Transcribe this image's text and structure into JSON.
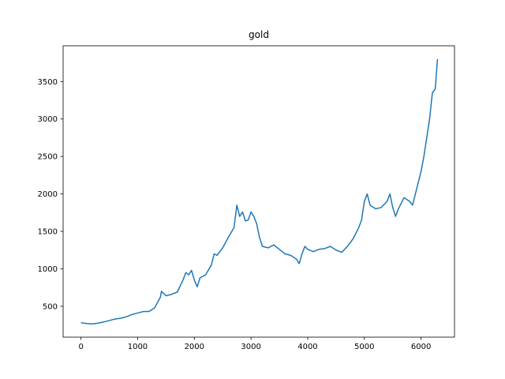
{
  "chart_data": {
    "type": "line",
    "title": "gold",
    "x": [
      0,
      100,
      200,
      300,
      400,
      500,
      600,
      700,
      800,
      900,
      1000,
      1100,
      1200,
      1300,
      1400,
      1420,
      1500,
      1600,
      1700,
      1800,
      1850,
      1900,
      1950,
      2000,
      2050,
      2100,
      2200,
      2300,
      2350,
      2400,
      2500,
      2600,
      2700,
      2750,
      2800,
      2850,
      2900,
      2950,
      3000,
      3050,
      3100,
      3150,
      3200,
      3300,
      3400,
      3500,
      3600,
      3700,
      3800,
      3850,
      3900,
      3950,
      4000,
      4100,
      4200,
      4300,
      4400,
      4500,
      4600,
      4700,
      4800,
      4900,
      4950,
      5000,
      5050,
      5100,
      5200,
      5300,
      5400,
      5450,
      5500,
      5550,
      5600,
      5700,
      5800,
      5850,
      5900,
      5950,
      6000,
      6050,
      6100,
      6150,
      6200,
      6250,
      6290
    ],
    "series": [
      {
        "color": "#1f77b4",
        "values": [
          280,
          270,
          265,
          275,
          290,
          310,
          330,
          340,
          360,
          390,
          410,
          430,
          430,
          480,
          620,
          700,
          640,
          660,
          690,
          850,
          950,
          920,
          980,
          850,
          760,
          880,
          920,
          1050,
          1200,
          1180,
          1280,
          1420,
          1550,
          1850,
          1700,
          1760,
          1640,
          1650,
          1760,
          1700,
          1600,
          1420,
          1300,
          1280,
          1320,
          1260,
          1200,
          1180,
          1130,
          1070,
          1200,
          1300,
          1260,
          1230,
          1260,
          1270,
          1300,
          1250,
          1220,
          1300,
          1400,
          1550,
          1650,
          1900,
          2000,
          1850,
          1800,
          1820,
          1900,
          2000,
          1820,
          1700,
          1800,
          1950,
          1900,
          1850,
          2000,
          2150,
          2300,
          2500,
          2750,
          3000,
          3350,
          3400,
          3800
        ]
      }
    ],
    "xlim": [
      -315,
      6590
    ],
    "ylim": [
      88,
      3977
    ],
    "xticks": [
      0,
      1000,
      2000,
      3000,
      4000,
      5000,
      6000
    ],
    "yticks": [
      500,
      1000,
      1500,
      2000,
      2500,
      3000,
      3500
    ]
  }
}
